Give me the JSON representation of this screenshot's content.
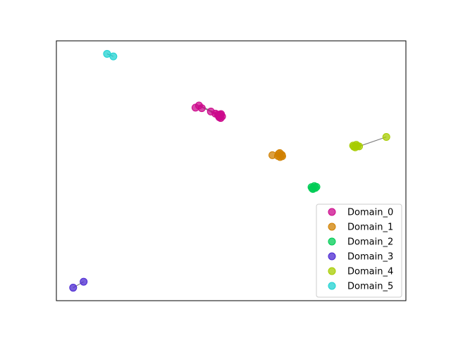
{
  "chart_data": {
    "type": "scatter",
    "title": "",
    "xlabel": "",
    "ylabel": "",
    "axes_visible": false,
    "grid": false,
    "legend_placement": "bottom-right",
    "xlim": [
      0,
      100
    ],
    "ylim": [
      0,
      100
    ],
    "series": [
      {
        "name": "Domain_0",
        "color": "#cc0a8c",
        "points": [
          [
            39.8,
            74.3
          ],
          [
            40.8,
            75.1
          ],
          [
            41.6,
            74.1
          ],
          [
            44.2,
            72.8
          ],
          [
            45.5,
            72.0
          ],
          [
            46.2,
            71.6
          ],
          [
            46.8,
            71.0
          ],
          [
            47.1,
            71.8
          ],
          [
            46.6,
            70.6
          ],
          [
            47.4,
            70.9
          ],
          [
            46.4,
            71.2
          ],
          [
            47.0,
            70.3
          ],
          [
            46.9,
            71.5
          ],
          [
            46.5,
            70.9
          ]
        ],
        "edges": [
          [
            1,
            5
          ],
          [
            3,
            6
          ]
        ]
      },
      {
        "name": "Domain_1",
        "color": "#d08000",
        "points": [
          [
            61.8,
            56.0
          ],
          [
            63.6,
            56.5
          ],
          [
            64.5,
            56.1
          ],
          [
            64.0,
            55.3
          ],
          [
            63.9,
            56.8
          ],
          [
            64.6,
            55.6
          ],
          [
            63.4,
            55.7
          ]
        ],
        "edges": []
      },
      {
        "name": "Domain_2",
        "color": "#00cc55",
        "points": [
          [
            73.0,
            43.7
          ],
          [
            74.1,
            43.4
          ],
          [
            73.4,
            43.0
          ],
          [
            73.8,
            44.1
          ],
          [
            74.4,
            43.8
          ],
          [
            73.2,
            43.2
          ]
        ],
        "edges": []
      },
      {
        "name": "Domain_3",
        "color": "#4b28d2",
        "points": [
          [
            4.8,
            5.0
          ],
          [
            7.8,
            7.3
          ]
        ],
        "edges": [
          [
            0,
            1
          ]
        ]
      },
      {
        "name": "Domain_4",
        "color": "#a7cc00",
        "points": [
          [
            85.1,
            59.3
          ],
          [
            86.1,
            59.5
          ],
          [
            85.5,
            59.0
          ],
          [
            85.8,
            60.0
          ],
          [
            86.6,
            59.4
          ],
          [
            84.9,
            59.7
          ],
          [
            94.4,
            63.0
          ]
        ],
        "edges": [
          [
            4,
            6
          ]
        ]
      },
      {
        "name": "Domain_5",
        "color": "#1fd2d2",
        "points": [
          [
            14.5,
            95.0
          ],
          [
            16.3,
            94.0
          ]
        ],
        "edges": [
          [
            0,
            1
          ]
        ]
      }
    ]
  }
}
